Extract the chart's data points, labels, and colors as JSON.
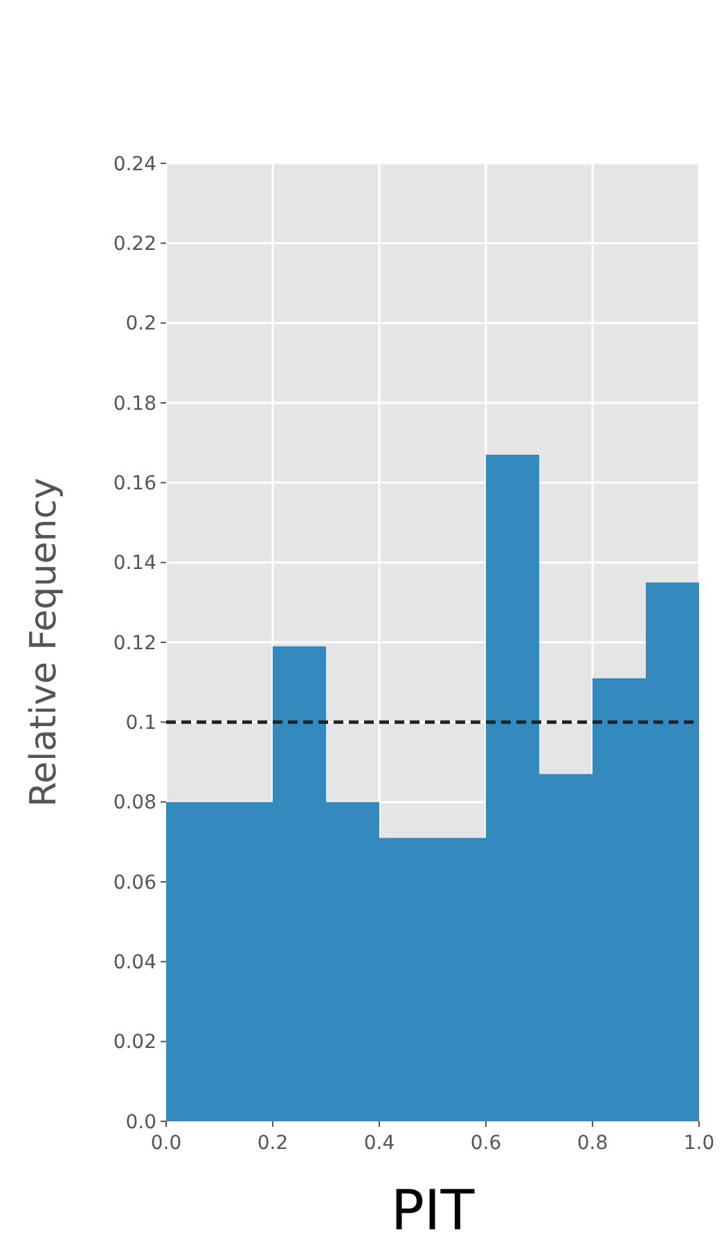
{
  "chart_data": {
    "type": "histogram",
    "xlabel": "PIT",
    "ylabel": "Relative Fequency",
    "bins": [
      0,
      0.1,
      0.2,
      0.3,
      0.4,
      0.5,
      0.6,
      0.7,
      0.8,
      0.9,
      1.0
    ],
    "values": [
      0.08,
      0.08,
      0.119,
      0.08,
      0.071,
      0.071,
      0.167,
      0.087,
      0.111,
      0.135
    ],
    "color": "#348abd",
    "xlim": [
      0,
      1
    ],
    "ylim": [
      0,
      0.24
    ],
    "xticks": [
      {
        "value": 0,
        "label": "0.0"
      },
      0.2,
      0.4,
      0.6,
      0.8,
      {
        "value": 1,
        "label": "1.0"
      }
    ],
    "yticks": [
      {
        "value": 0,
        "label": "0.0"
      },
      0.02,
      0.04,
      0.06,
      0.08,
      0.1,
      0.12,
      0.14,
      0.16,
      0.18,
      0.2,
      0.22,
      0.24
    ],
    "ref_lines": [
      {
        "axis": "y",
        "value": 0.1,
        "color": "#222222",
        "line_style": "dashed"
      }
    ],
    "grid": true
  }
}
